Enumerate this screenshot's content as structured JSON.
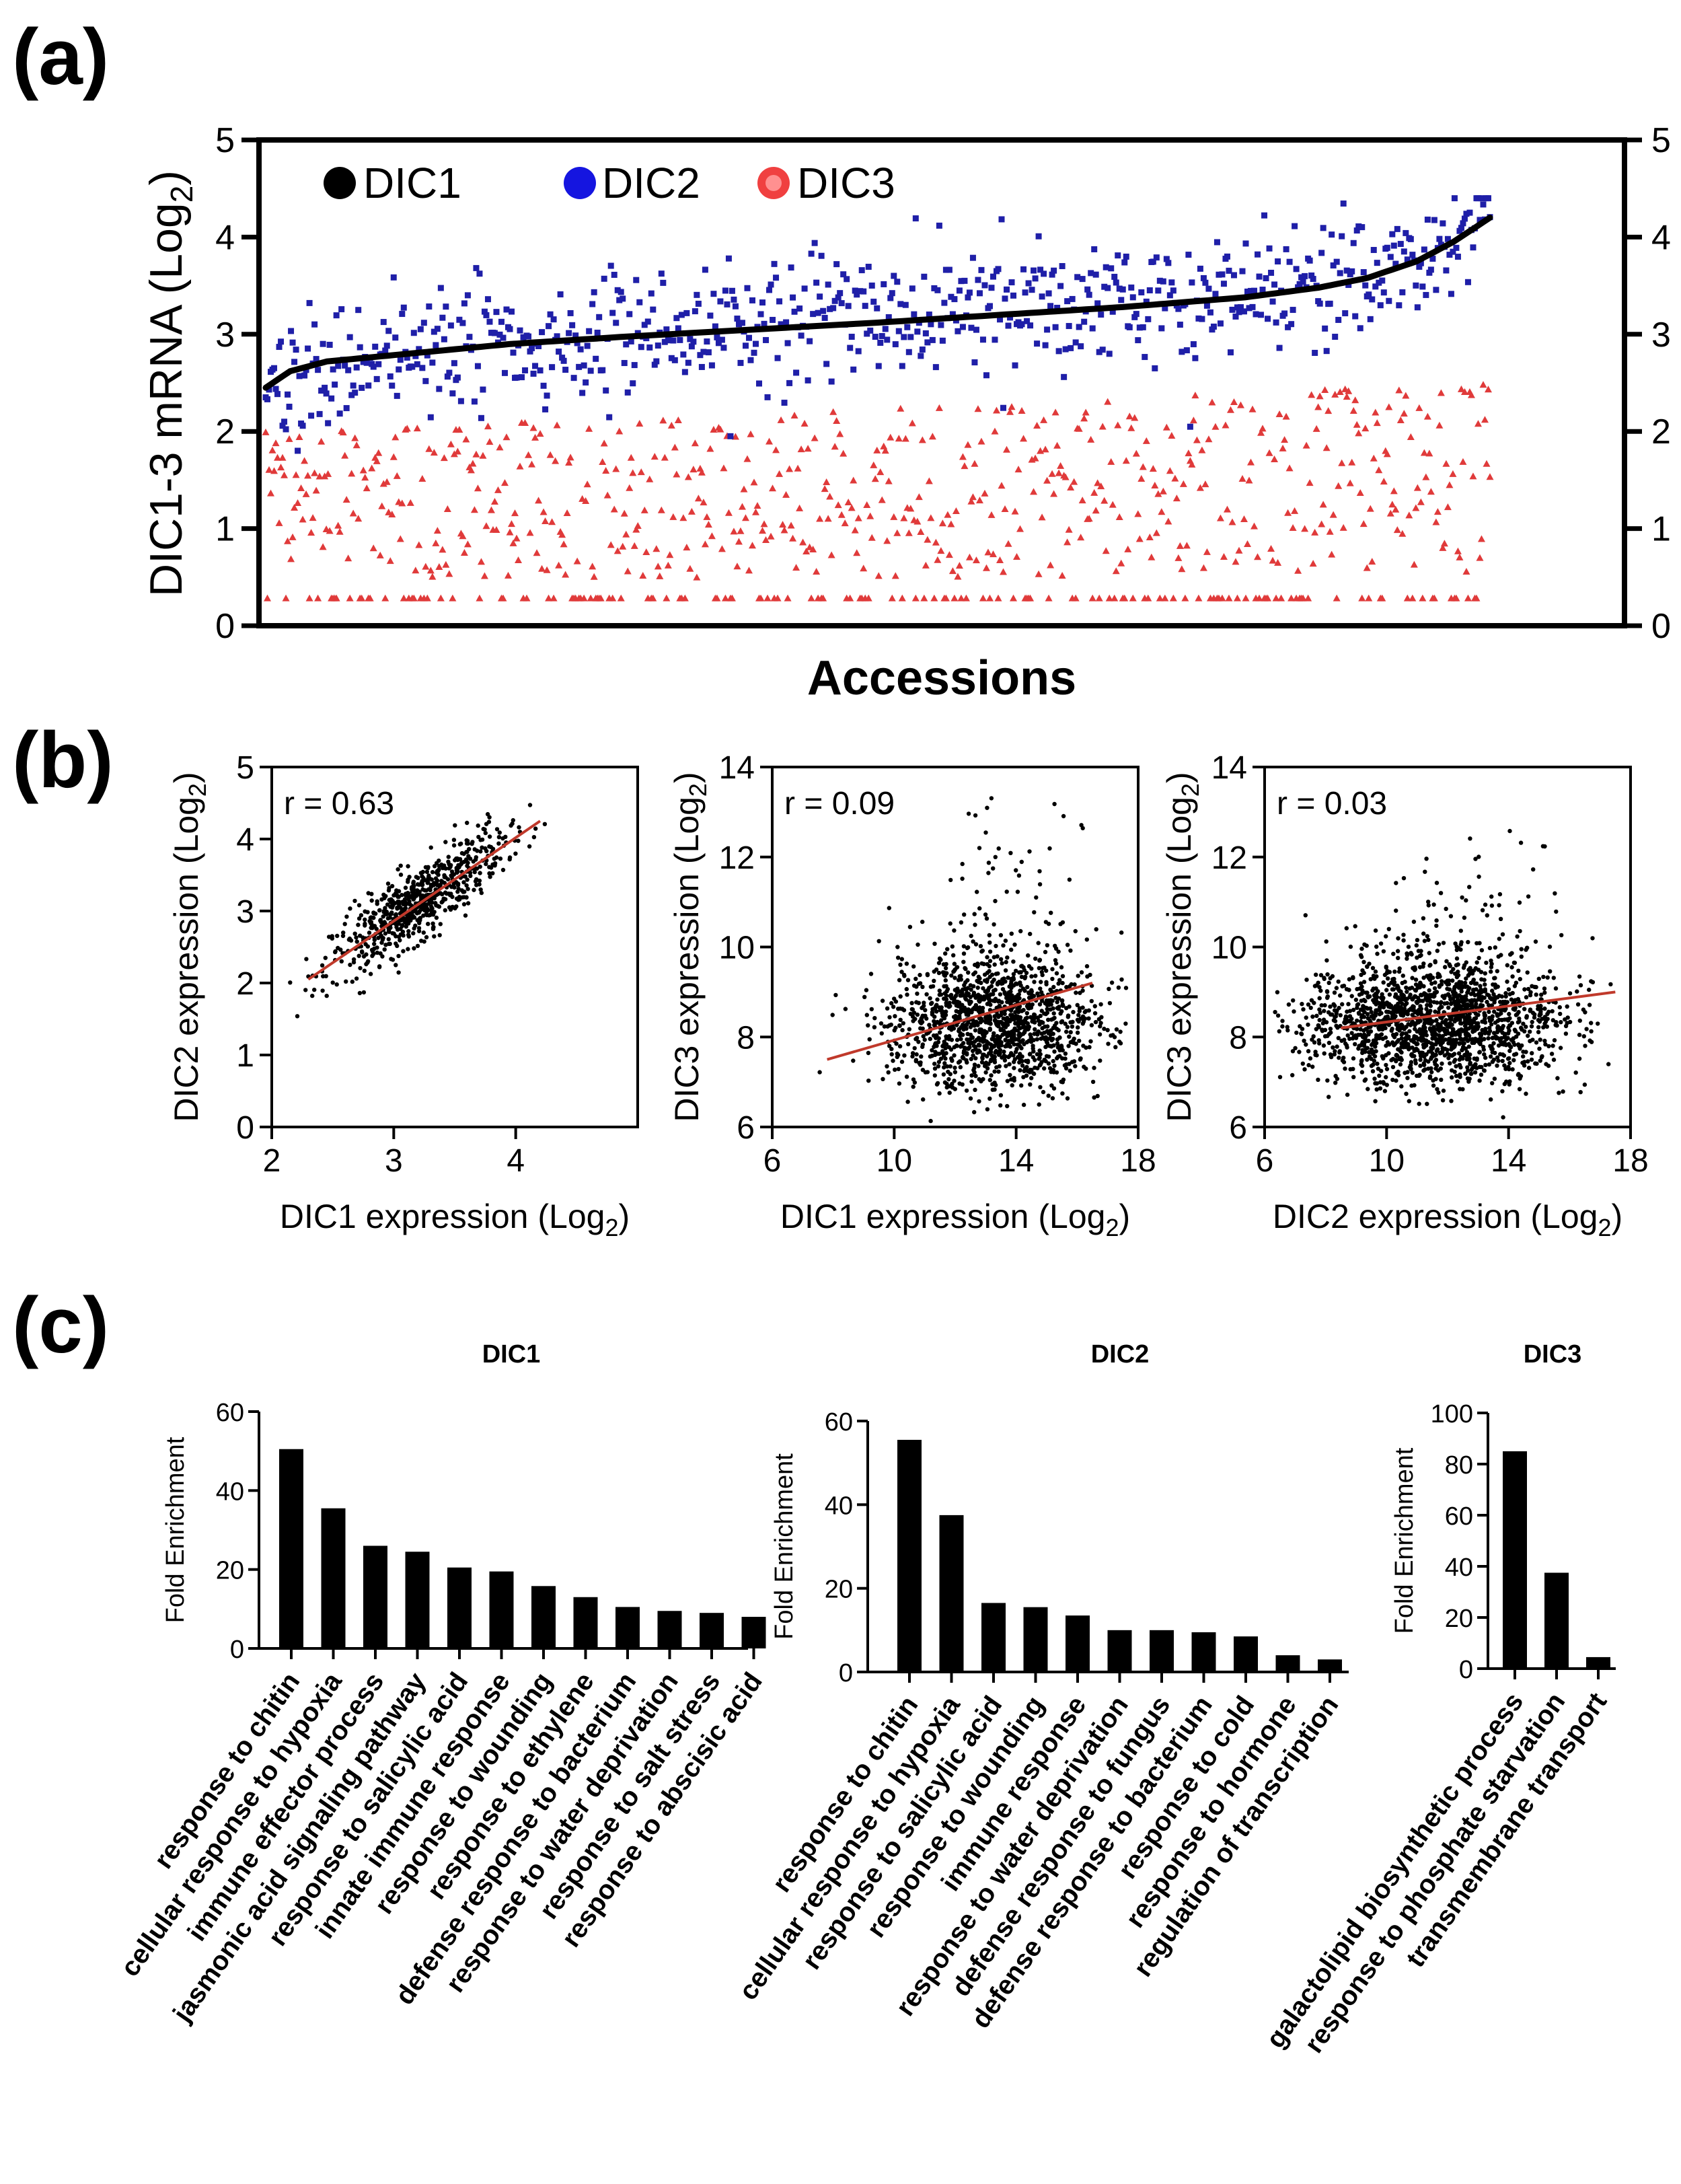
{
  "panels": {
    "a": "(a)",
    "b": "(b)",
    "c": "(c)"
  },
  "colors": {
    "dic1": "#000000",
    "dic2": "#1f1fa8",
    "dic3": "#e03a3a",
    "fit_line": "#c0392b",
    "bars": "#000000"
  },
  "chart_data": [
    {
      "id": "a",
      "type": "scatter",
      "ylabel": "DIC1-3 mRNA (Log2)",
      "xlabel": "Accessions",
      "ylim": [
        0,
        5
      ],
      "yticks": [
        0,
        1,
        2,
        3,
        4,
        5
      ],
      "y_right_ticks": [
        0,
        1,
        2,
        3,
        4,
        5
      ],
      "legend_position": "top-left",
      "n_accessions": 728,
      "series": [
        {
          "name": "DIC1",
          "marker": "line",
          "color": "#000000",
          "curve_x": [
            0,
            0.02,
            0.05,
            0.1,
            0.2,
            0.3,
            0.4,
            0.5,
            0.6,
            0.7,
            0.8,
            0.86,
            0.9,
            0.94,
            0.97,
            1.0
          ],
          "curve_y": [
            2.45,
            2.62,
            2.72,
            2.78,
            2.9,
            2.98,
            3.05,
            3.12,
            3.2,
            3.28,
            3.38,
            3.48,
            3.58,
            3.75,
            3.95,
            4.2
          ]
        },
        {
          "name": "DIC2",
          "marker": "square",
          "color": "#1f1fa8",
          "residual_sd": 0.32
        },
        {
          "name": "DIC3",
          "marker": "triangle",
          "color": "#e03a3a",
          "range": [
            0.28,
            2.6
          ],
          "floor_value": 0.28
        }
      ]
    },
    {
      "id": "b1",
      "type": "scatter",
      "xlabel": "DIC1  expression (Log",
      "ylabel": "DIC2 expression (Log",
      "label_sub": "2",
      "annotation": "r = 0.63",
      "xlim": [
        2,
        5
      ],
      "ylim": [
        0,
        5
      ],
      "xticks": [
        2,
        3,
        4
      ],
      "yticks": [
        0,
        1,
        2,
        3,
        4,
        5
      ],
      "fit_line": {
        "x": [
          2.3,
          4.2
        ],
        "y": [
          2.05,
          4.25
        ]
      },
      "points": {
        "x_center": 3.2,
        "x_sd": 0.35,
        "slope": 1.15,
        "y_sd": 0.25,
        "n": 700
      }
    },
    {
      "id": "b2",
      "type": "scatter",
      "xlabel": "DIC1 expression (Log",
      "ylabel": "DIC3 expression (Log",
      "label_sub": "2",
      "annotation": "r = 0.09",
      "xlim": [
        6,
        18
      ],
      "ylim": [
        6,
        14
      ],
      "xticks": [
        6,
        10,
        14,
        18
      ],
      "yticks": [
        6,
        8,
        10,
        12,
        14
      ],
      "fit_line": {
        "x": [
          7.8,
          16.5
        ],
        "y": [
          7.5,
          9.2
        ]
      },
      "points": {
        "x_center": 13.2,
        "x_sd": 1.7,
        "y_center": 8.3,
        "y_sd": 0.8,
        "n": 1400
      }
    },
    {
      "id": "b3",
      "type": "scatter",
      "xlabel": "DIC2  expression (Log",
      "ylabel": "DIC3 expression (Log",
      "label_sub": "2",
      "annotation": "r = 0.03",
      "xlim": [
        6,
        18
      ],
      "ylim": [
        6,
        14
      ],
      "xticks": [
        6,
        10,
        14,
        18
      ],
      "yticks": [
        6,
        8,
        10,
        12,
        14
      ],
      "fit_line": {
        "x": [
          8.5,
          17.5
        ],
        "y": [
          8.2,
          9.0
        ]
      },
      "points": {
        "x_center": 11.5,
        "x_sd": 2.1,
        "y_center": 8.3,
        "y_sd": 0.75,
        "n": 1800
      }
    },
    {
      "id": "c1",
      "type": "bar",
      "title": "DIC1",
      "ylabel": "Fold Enrichment",
      "ylim": [
        0,
        60
      ],
      "yticks": [
        0,
        20,
        40,
        60
      ],
      "categories": [
        "response to chitin",
        "cellular response to hypoxia",
        "immune effector process",
        "jasmonic acid signaling pathway",
        "response to salicylic acid",
        "innate immune response",
        "response to wounding",
        "response to ethylene",
        "defense response to bacterium",
        "response to water deprivation",
        "response to salt stress",
        "response to abscisic acid"
      ],
      "values": [
        50.5,
        35.5,
        26,
        24.5,
        20.5,
        19.5,
        15.8,
        13,
        10.5,
        9.5,
        9,
        8
      ]
    },
    {
      "id": "c2",
      "type": "bar",
      "title": "DIC2",
      "ylabel": "Fold Enrichment",
      "ylim": [
        0,
        60
      ],
      "yticks": [
        0,
        20,
        40,
        60
      ],
      "categories": [
        "response to chitin",
        "cellular response to hypoxia",
        "response to salicylic acid",
        "response to wounding",
        "immune response",
        "response to water deprivation",
        "defense response to fungus",
        "defense response to bacterium",
        "response to cold",
        "response to hormone",
        "regulation of transcription"
      ],
      "values": [
        55.5,
        37.5,
        16.5,
        15.5,
        13.5,
        10,
        10,
        9.5,
        8.5,
        4,
        3
      ]
    },
    {
      "id": "c3",
      "type": "bar",
      "title": "DIC3",
      "ylabel": "Fold Enrichment",
      "ylim": [
        0,
        100
      ],
      "yticks": [
        0,
        20,
        40,
        60,
        80,
        100
      ],
      "categories": [
        "galactolipid biosynthetic process",
        "response to phosphate starvation",
        "transmembrane transport"
      ],
      "values": [
        85,
        37.5,
        4.5
      ]
    }
  ]
}
